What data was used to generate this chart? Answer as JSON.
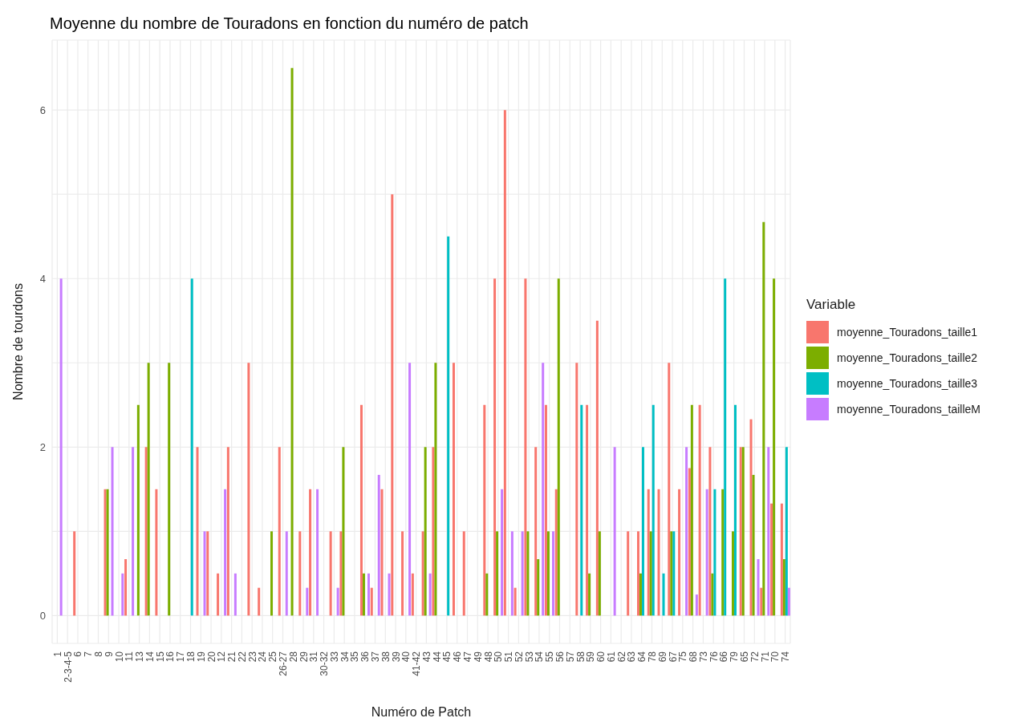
{
  "chart_data": {
    "type": "bar",
    "title": "Moyenne du nombre de Touradons en fonction du numéro de patch",
    "xlabel": "Numéro de Patch",
    "ylabel": "Nombre de tourdons",
    "legend_title": "Variable",
    "legend": "right",
    "grid": true,
    "categories": [
      "1",
      "2-3-4-5",
      "6",
      "7",
      "8",
      "9",
      "10",
      "11",
      "13",
      "14",
      "15",
      "16",
      "17",
      "18",
      "19",
      "20",
      "12",
      "21",
      "22",
      "23",
      "24",
      "25",
      "26-27",
      "28",
      "29",
      "31",
      "30-32",
      "33",
      "34",
      "35",
      "36",
      "37",
      "38",
      "39",
      "40",
      "41-42",
      "43",
      "44",
      "45",
      "46",
      "47",
      "49",
      "48",
      "50",
      "51",
      "52",
      "53",
      "54",
      "55",
      "56",
      "57",
      "58",
      "59",
      "60",
      "61",
      "62",
      "63",
      "64",
      "78",
      "69",
      "67",
      "75",
      "68",
      "73",
      "76",
      "66",
      "79",
      "65",
      "72",
      "71",
      "70",
      "74"
    ],
    "ylim": [
      -0.33,
      6.83
    ],
    "yticks": [
      0,
      {
        "value": 1,
        "label": null
      },
      2,
      {
        "value": 3,
        "label": null
      },
      4,
      {
        "value": 5,
        "label": null
      },
      6
    ],
    "series": [
      {
        "name": "moyenne_Touradons_taille1",
        "color": "#f8766d",
        "values": [
          null,
          null,
          1,
          null,
          null,
          1.5,
          null,
          0.67,
          null,
          2,
          1.5,
          null,
          null,
          null,
          2,
          1,
          0.5,
          2,
          null,
          3,
          0.33,
          null,
          2,
          null,
          1,
          1.5,
          null,
          1,
          1,
          null,
          2.5,
          0.33,
          1.5,
          5,
          1,
          0.5,
          1,
          2,
          null,
          3,
          1,
          null,
          2.5,
          4,
          6,
          0.33,
          4,
          2,
          2.5,
          1.5,
          null,
          3,
          2.5,
          3.5,
          null,
          null,
          1,
          1,
          1.5,
          1.5,
          3,
          1.5,
          1.75,
          2.5,
          2,
          null,
          null,
          2,
          2.33,
          0.33,
          1.33,
          1.33
        ]
      },
      {
        "name": "moyenne_Touradons_taille2",
        "color": "#7cae00",
        "values": [
          null,
          null,
          null,
          null,
          null,
          1.5,
          null,
          null,
          2.5,
          3,
          null,
          3,
          null,
          null,
          null,
          null,
          null,
          null,
          null,
          null,
          null,
          1,
          null,
          6.5,
          null,
          null,
          null,
          null,
          2,
          null,
          0.5,
          null,
          null,
          null,
          null,
          null,
          2,
          3,
          null,
          null,
          null,
          null,
          0.5,
          1,
          null,
          null,
          1,
          0.67,
          1,
          4,
          null,
          null,
          0.5,
          1,
          null,
          null,
          null,
          0.5,
          1,
          null,
          1,
          null,
          2.5,
          null,
          0.5,
          1.5,
          1,
          2,
          1.67,
          4.67,
          4,
          0.67
        ]
      },
      {
        "name": "moyenne_Touradons_taille3",
        "color": "#00bfc4",
        "values": [
          null,
          null,
          null,
          null,
          null,
          null,
          null,
          null,
          null,
          null,
          null,
          null,
          null,
          4,
          null,
          null,
          null,
          null,
          null,
          null,
          null,
          null,
          null,
          null,
          null,
          null,
          null,
          null,
          null,
          null,
          null,
          null,
          null,
          null,
          null,
          null,
          null,
          null,
          4.5,
          null,
          null,
          null,
          null,
          null,
          null,
          null,
          null,
          null,
          null,
          null,
          null,
          2.5,
          null,
          null,
          null,
          null,
          null,
          2,
          2.5,
          0.5,
          1,
          null,
          null,
          null,
          1.5,
          4,
          2.5,
          null,
          null,
          null,
          null,
          2
        ]
      },
      {
        "name": "moyenne_Touradons_tailleM",
        "color": "#c77cff",
        "values": [
          4,
          null,
          null,
          null,
          null,
          2,
          0.5,
          2,
          null,
          null,
          null,
          null,
          null,
          null,
          1,
          null,
          1.5,
          0.5,
          null,
          null,
          null,
          null,
          1,
          null,
          0.33,
          1.5,
          null,
          0.33,
          null,
          null,
          0.5,
          1.67,
          0.5,
          null,
          3,
          null,
          0.5,
          null,
          null,
          null,
          null,
          null,
          null,
          1.5,
          1,
          1,
          null,
          3,
          1,
          null,
          null,
          null,
          null,
          null,
          2,
          null,
          null,
          null,
          null,
          null,
          null,
          2,
          0.25,
          1.5,
          null,
          null,
          null,
          null,
          0.67,
          2,
          null,
          0.33
        ]
      }
    ]
  }
}
